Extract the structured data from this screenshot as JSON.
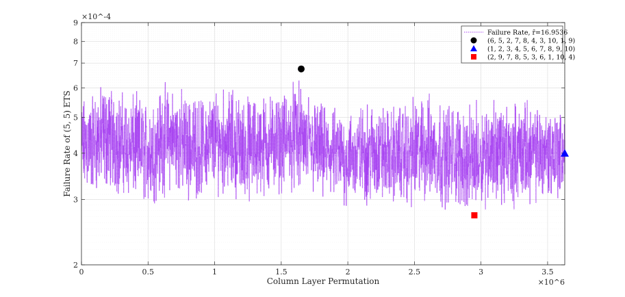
{
  "chart_data": {
    "type": "line",
    "title": "",
    "xlabel": "Column Layer Permutation",
    "ylabel": "Failure Rate of (5, 5) ETS",
    "x_exponent": "×10^6",
    "y_exponent": "×10^-4",
    "x_scale": "linear",
    "y_scale": "log",
    "xlim": [
      0,
      3628800
    ],
    "ylim": [
      0.0002,
      0.0009
    ],
    "x_ticks": [
      0,
      500000,
      1000000,
      1500000,
      2000000,
      2500000,
      3000000,
      3500000
    ],
    "x_tick_labels": [
      "0",
      "0.5",
      "1",
      "1.5",
      "2",
      "2.5",
      "3",
      "3.5"
    ],
    "y_ticks": [
      0.0002,
      0.0003,
      0.0004,
      0.0005,
      0.0006,
      0.0007,
      0.0008,
      0.0009
    ],
    "y_tick_labels": [
      "2",
      "3",
      "4",
      "5",
      "6",
      "7",
      "8",
      "9"
    ],
    "grid": true,
    "legend_position": "top-right",
    "series": [
      {
        "name": "Failure Rate, r̄=16.9536",
        "style": "dotted",
        "color": "#a43cf0",
        "band_x": [
          0,
          100000,
          200000,
          300000,
          400000,
          500000,
          600000,
          700000,
          800000,
          900000,
          1000000,
          1100000,
          1200000,
          1300000,
          1400000,
          1500000,
          1600000,
          1700000,
          1800000,
          1900000,
          2000000,
          2100000,
          2200000,
          2300000,
          2400000,
          2500000,
          2600000,
          2700000,
          2800000,
          2900000,
          3000000,
          3100000,
          3200000,
          3300000,
          3400000,
          3500000,
          3600000,
          3628800
        ],
        "band_upper": [
          0.00058,
          0.00061,
          0.00064,
          0.0006,
          0.00059,
          0.00057,
          0.00063,
          0.00062,
          0.00059,
          0.00058,
          0.00061,
          0.00062,
          0.00058,
          0.00059,
          0.0006,
          0.00058,
          0.00064,
          0.0006,
          0.00055,
          0.00054,
          0.00053,
          0.00055,
          0.00057,
          0.00054,
          0.00056,
          0.00058,
          0.00059,
          0.00057,
          0.00056,
          0.00054,
          0.00057,
          0.00058,
          0.00055,
          0.00057,
          0.00055,
          0.00056,
          0.00054,
          0.00053
        ],
        "band_lower": [
          0.00029,
          0.0003,
          0.00031,
          0.0003,
          0.00029,
          0.00028,
          0.0003,
          0.00031,
          0.00029,
          0.0003,
          0.00031,
          0.0003,
          0.00029,
          0.00029,
          0.0003,
          0.00031,
          0.00031,
          0.0003,
          0.00029,
          0.00029,
          0.00028,
          0.00029,
          0.00028,
          0.00029,
          0.00028,
          0.00028,
          0.00029,
          0.00028,
          0.00028,
          0.00027,
          0.00028,
          0.00029,
          0.00028,
          0.00029,
          0.00029,
          0.00029,
          0.00029,
          0.0003
        ]
      }
    ],
    "markers": [
      {
        "name": "(6, 5, 2, 7, 8, 4, 3, 10, 1, 9)",
        "shape": "circle",
        "color": "#000000",
        "x": 1650000,
        "y": 0.000675
      },
      {
        "name": "(1, 2, 3, 4, 5, 6, 7, 8, 9, 10)",
        "shape": "triangle",
        "color": "#0000ff",
        "x": 3628800,
        "y": 0.0004
      },
      {
        "name": "(2, 9, 7, 8, 5, 3, 6, 1, 10, 4)",
        "shape": "square",
        "color": "#ff0000",
        "x": 2950000,
        "y": 0.000272
      }
    ]
  }
}
